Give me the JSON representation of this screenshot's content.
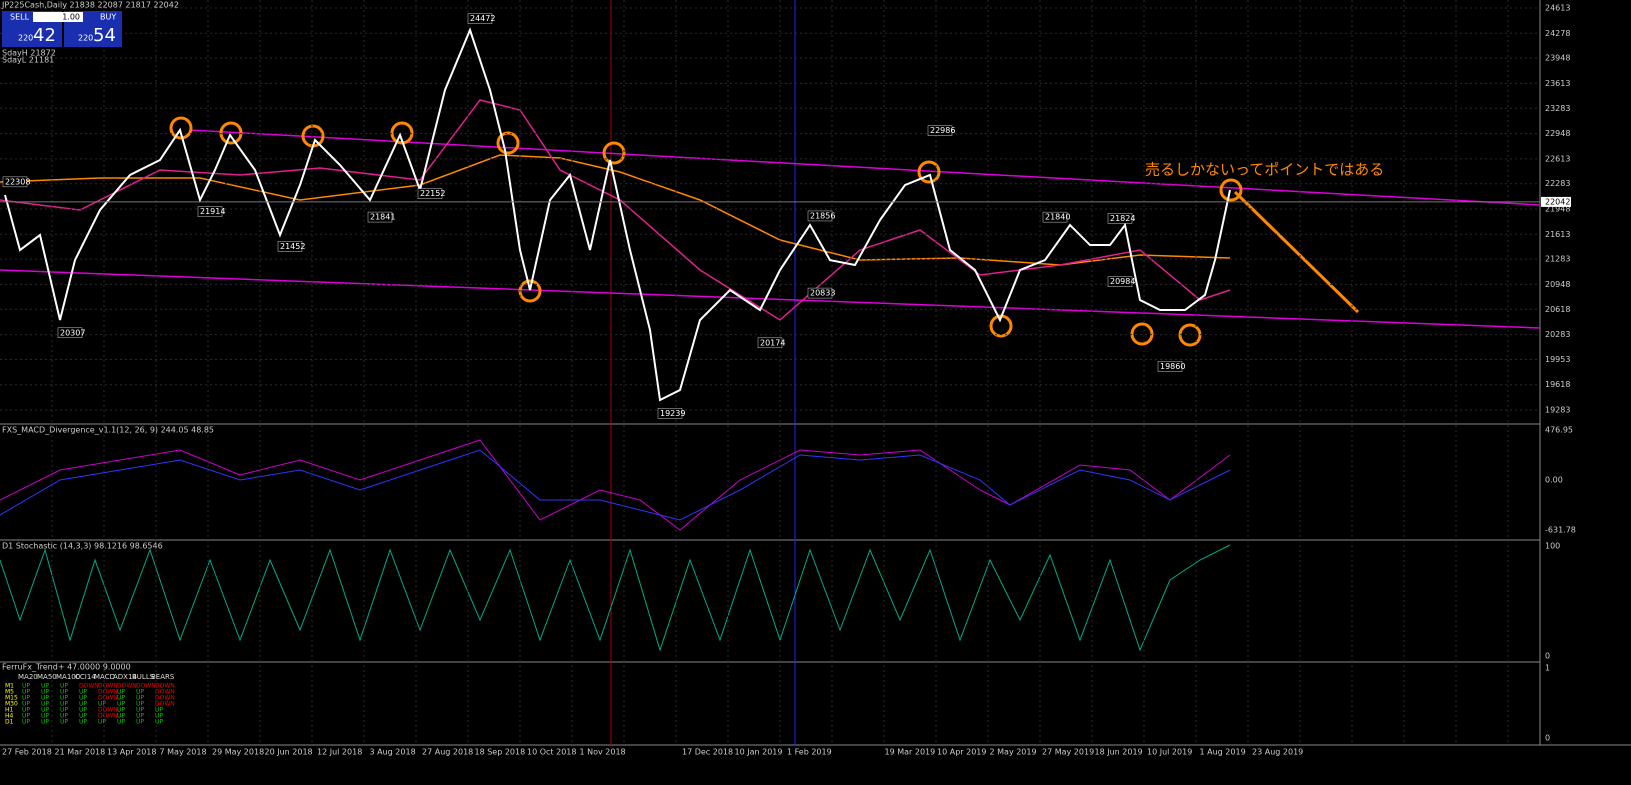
{
  "header": {
    "symbol": "JP225Cash,Daily 21838 22087 21817 22042",
    "sell": "SELL",
    "buy": "BUY",
    "lot": "1.00",
    "bid_big": "220",
    "bid": "42",
    "ask_big": "220",
    "ask": "54",
    "info1": "SdayH 21872",
    "info2": "SdayL 21181"
  },
  "chart_data": {
    "type": "line",
    "x": [
      1,
      4,
      8,
      12,
      15,
      20,
      26,
      32,
      36,
      40,
      43,
      46,
      51,
      56,
      60,
      63,
      68,
      74,
      80,
      84,
      89,
      94,
      98,
      101,
      104,
      106,
      110,
      114,
      118,
      122,
      126,
      130,
      132,
      136,
      140,
      146,
      152,
      156,
      162,
      166,
      171,
      176,
      181,
      186,
      190,
      195,
      200,
      204,
      209,
      214,
      218,
      222,
      225,
      228,
      232,
      237,
      241,
      243,
      246
    ],
    "values": [
      22133,
      21404,
      21603,
      20476,
      21271,
      21935,
      22399,
      22598,
      22995,
      22067,
      22465,
      22929,
      22465,
      21603,
      22266,
      22863,
      22531,
      22067,
      22929,
      22200,
      23526,
      24321,
      23526,
      22730,
      21404,
      20874,
      22067,
      22399,
      21404,
      22598,
      21404,
      20343,
      19415,
      19548,
      20476,
      20874,
      20609,
      21139,
      21736,
      21271,
      21205,
      21802,
      22266,
      22399,
      21404,
      21139,
      20476,
      21139,
      21271,
      21736,
      21470,
      21470,
      21736,
      20741,
      20609,
      20609,
      20808,
      21271,
      22200
    ],
    "color": "#ffffff",
    "xlim": [
      0,
      308
    ],
    "ylim": [
      19283,
      24613
    ],
    "yticks": [
      24613,
      24278,
      23948,
      23613,
      23283,
      22948,
      22613,
      22283,
      21948,
      21613,
      21283,
      20948,
      20618,
      20283,
      19953,
      19618,
      19283
    ],
    "current": 22042,
    "annotation": "売るしかないってポイントではある",
    "pivots": [
      {
        "x": 1,
        "value": 22308
      },
      {
        "x": 12,
        "value": 20307
      },
      {
        "x": 40,
        "value": 21914
      },
      {
        "x": 56,
        "value": 21452
      },
      {
        "x": 74,
        "value": 21841
      },
      {
        "x": 84,
        "value": 22152
      },
      {
        "x": 94,
        "value": 24472
      },
      {
        "x": 132,
        "value": 19239
      },
      {
        "x": 152,
        "value": 20174
      },
      {
        "x": 162,
        "value": 20833
      },
      {
        "x": 162,
        "value": 21856
      },
      {
        "x": 209,
        "value": 21840
      },
      {
        "x": 222,
        "value": 21824
      },
      {
        "x": 222,
        "value": 20984
      },
      {
        "x": 232,
        "value": 19860
      },
      {
        "x": 186,
        "value": 22986
      }
    ],
    "dates": [
      "27 Feb 2018",
      "21 Mar 2018",
      "13 Apr 2018",
      "7 May 2018",
      "29 May 2018",
      "20 Jun 2018",
      "12 Jul 2018",
      "3 Aug 2018",
      "27 Aug 2018",
      "18 Sep 2018",
      "10 Oct 2018",
      "1 Nov 2018",
      "17 Dec 2018",
      "10 Jan 2019",
      "1 Feb 2019",
      "19 Mar 2019",
      "10 Apr 2019",
      "2 May 2019",
      "27 May 2019",
      "18 Jun 2019",
      "10 Jul 2019",
      "1 Aug 2019",
      "23 Aug 2019"
    ]
  },
  "macd": {
    "title": "FXS_MACD_Divergence_v1.1(12, 26, 9) 244.05 48.85",
    "ticks": [
      "476.95",
      "0.00",
      "-631.78"
    ]
  },
  "stoch": {
    "title": "D1 Stochastic (14,3,3) 98.1216 98.6546",
    "ticks": [
      "100",
      "0"
    ]
  },
  "trend": {
    "title": "FerruFx_Trend+ 47.0000 9.0000",
    "ticks": [
      "1",
      "0"
    ],
    "columns": [
      "MA20",
      "MA50",
      "MA100",
      "CCI14",
      "MACD",
      "ADX14",
      "BULLS",
      "BEARS"
    ],
    "rows": [
      {
        "tf": "M1",
        "cells": [
          "UP",
          "UP",
          "UP",
          "DOWN",
          "DOWN",
          "DOWN",
          "DOWN",
          "DOWN"
        ]
      },
      {
        "tf": "M5",
        "cells": [
          "UP",
          "UP",
          "UP",
          "UP",
          "DOWN",
          "UP",
          "UP",
          "DOWN"
        ]
      },
      {
        "tf": "M15",
        "cells": [
          "UP",
          "UP",
          "UP",
          "UP",
          "DOWN",
          "UP",
          "UP",
          "DOWN"
        ]
      },
      {
        "tf": "M30",
        "cells": [
          "UP",
          "UP",
          "UP",
          "UP",
          "UP",
          "UP",
          "UP",
          "DOWN"
        ]
      },
      {
        "tf": "H1",
        "cells": [
          "UP",
          "UP",
          "UP",
          "UP",
          "DOWN",
          "UP",
          "UP",
          "UP"
        ]
      },
      {
        "tf": "H4",
        "cells": [
          "UP",
          "UP",
          "UP",
          "UP",
          "DOWN",
          "UP",
          "UP",
          "UP"
        ]
      },
      {
        "tf": "D1",
        "cells": [
          "UP",
          "UP",
          "UP",
          "UP",
          "UP",
          "UP",
          "UP",
          "UP"
        ]
      }
    ]
  }
}
